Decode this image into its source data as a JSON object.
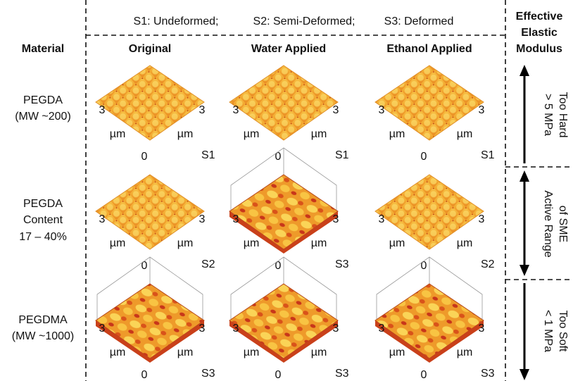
{
  "legend": [
    "S1: Undeformed;",
    "S2: Semi-Deformed;",
    "S3: Deformed"
  ],
  "header": {
    "material": "Material",
    "columns": [
      "Original",
      "Water Applied",
      "Ethanol Applied"
    ],
    "modulus": [
      "Effective",
      "Elastic",
      "Modulus"
    ]
  },
  "axis": {
    "side": "3",
    "unit": "µm",
    "origin": "0"
  },
  "rows": [
    {
      "material": [
        "PEGDA",
        "(MW ~200)"
      ],
      "states": [
        "S1",
        "S1",
        "S1"
      ],
      "modulus": [
        "> 5 MPa",
        "Too Hard"
      ]
    },
    {
      "material": [
        "PEGDA",
        "Content",
        "17 – 40%"
      ],
      "states": [
        "S2",
        "S3",
        "S2"
      ],
      "modulus": [
        "Active Range",
        "of SME"
      ]
    },
    {
      "material": [
        "PEGDMA",
        "(MW ~1000)"
      ],
      "states": [
        "S3",
        "S3",
        "S3"
      ],
      "modulus": [
        "< 1 MPa",
        "Too Soft"
      ]
    }
  ]
}
